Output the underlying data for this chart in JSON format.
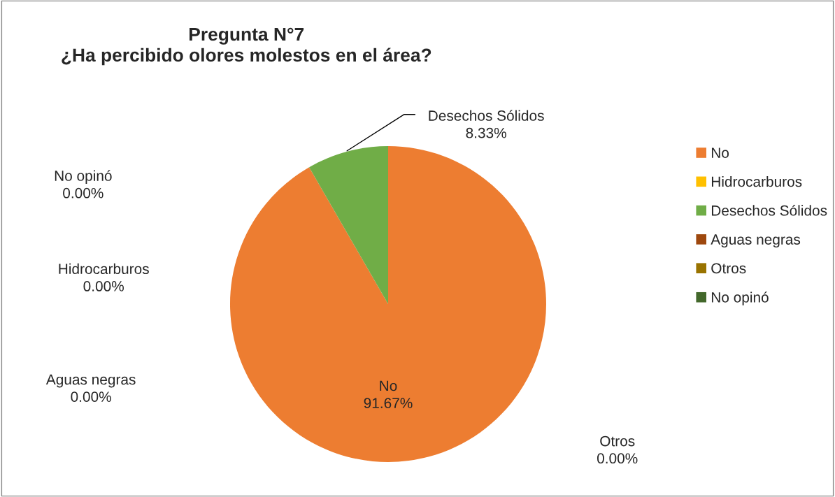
{
  "chart_data": {
    "type": "pie",
    "title": "Pregunta N°7\n¿Ha percibido olores molestos en el área?",
    "categories": [
      "No",
      "Hidrocarburos",
      "Desechos Sólidos",
      "Aguas negras",
      "Otros",
      "No opinó"
    ],
    "values": [
      91.67,
      0,
      8.33,
      0,
      0,
      0
    ],
    "colors": [
      "#ed7d31",
      "#ffc000",
      "#70ad47",
      "#9e480e",
      "#997300",
      "#43682b"
    ],
    "value_labels": [
      "91.67%",
      "0.00%",
      "8.33%",
      "0.00%",
      "0.00%",
      "0.00%"
    ],
    "legend": "right"
  }
}
